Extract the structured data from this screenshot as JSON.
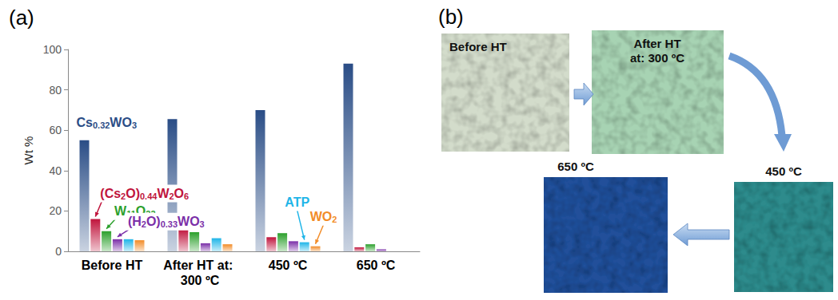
{
  "chart_data": {
    "type": "bar",
    "panel_label": "(a)",
    "y_label": "Wt %",
    "categories": [
      "Before HT",
      "After HT at: 300 ºC",
      "450 ºC",
      "650 ºC"
    ],
    "series": [
      {
        "name": "Cs0.32WO3",
        "color": "#2a4d86",
        "values": [
          55,
          65.5,
          70,
          93
        ]
      },
      {
        "name": "(Cs2O)0.44W2O6",
        "color": "#c0143c",
        "values": [
          16,
          11,
          7,
          2
        ]
      },
      {
        "name": "W11O22",
        "color": "#2ca02c",
        "values": [
          10,
          9.5,
          9,
          3.5
        ]
      },
      {
        "name": "(H2O)0.33WO3",
        "color": "#7b2fa8",
        "values": [
          6,
          4,
          5,
          1
        ]
      },
      {
        "name": "ATP",
        "color": "#1fb5e8",
        "values": [
          6,
          6.5,
          4.5,
          0
        ]
      },
      {
        "name": "WO2",
        "color": "#f28c28",
        "values": [
          5.5,
          3.5,
          2.5,
          0
        ]
      }
    ],
    "ylim": [
      0,
      100
    ],
    "yticks": [
      0,
      20,
      40,
      60,
      80,
      100
    ],
    "grid": false
  },
  "photo_panel": {
    "panel_label": "(b)",
    "images": [
      {
        "label": "Before HT",
        "color": "#d3dccb"
      },
      {
        "label": "After HT at: 300 ºC",
        "color": "#a7d3b3"
      },
      {
        "label": "450 ºC",
        "color": "#2f8b8c"
      },
      {
        "label": "650 ºC",
        "color": "#214f9a"
      }
    ]
  }
}
